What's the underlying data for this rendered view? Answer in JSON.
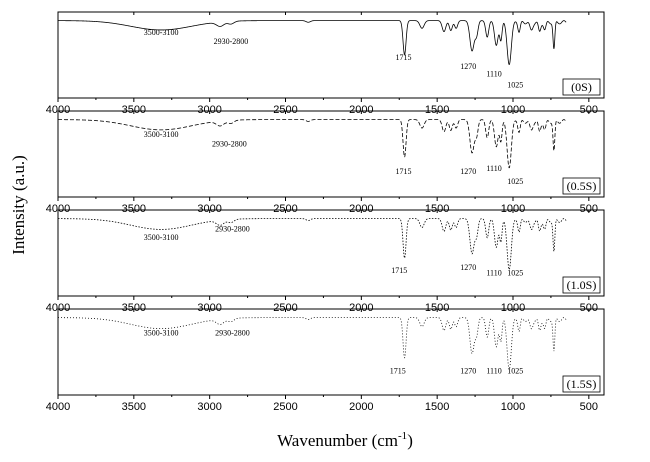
{
  "chart_data": {
    "type": "line",
    "ylabel": "Intensity (a.u.)",
    "xlabel_main": "Wavenumber (cm",
    "xlabel_sup": "-1",
    "xlabel_tail": ")",
    "xlim": [
      4000,
      400
    ],
    "x_ticks": [
      4000,
      3500,
      3000,
      2500,
      2000,
      1500,
      1000,
      500
    ],
    "grid": false,
    "panels": [
      {
        "sample": "(0S)",
        "dash": "",
        "annotations": [
          {
            "text": "3500-3100",
            "x": 3320,
            "y": 0.27
          },
          {
            "text": "2930-2800",
            "x": 2860,
            "y": 0.37
          },
          {
            "text": "1715",
            "x": 1722,
            "y": 0.56
          },
          {
            "text": "1270",
            "x": 1295,
            "y": 0.66
          },
          {
            "text": "1110",
            "x": 1125,
            "y": 0.75
          },
          {
            "text": "1025",
            "x": 985,
            "y": 0.88
          }
        ]
      },
      {
        "sample": "(0.5S)",
        "dash": "4 2",
        "annotations": [
          {
            "text": "3500-3100",
            "x": 3320,
            "y": 0.3
          },
          {
            "text": "2930-2800",
            "x": 2870,
            "y": 0.41
          },
          {
            "text": "1715",
            "x": 1722,
            "y": 0.73
          },
          {
            "text": "1270",
            "x": 1295,
            "y": 0.73
          },
          {
            "text": "1110",
            "x": 1125,
            "y": 0.7
          },
          {
            "text": "1025",
            "x": 985,
            "y": 0.85
          }
        ]
      },
      {
        "sample": "(1.0S)",
        "dash": "1.5 1.5",
        "annotations": [
          {
            "text": "3500-3100",
            "x": 3320,
            "y": 0.35
          },
          {
            "text": "2930-2800",
            "x": 2850,
            "y": 0.25
          },
          {
            "text": "1715",
            "x": 1750,
            "y": 0.73
          },
          {
            "text": "1270",
            "x": 1295,
            "y": 0.7
          },
          {
            "text": "1110",
            "x": 1125,
            "y": 0.76
          },
          {
            "text": "1025",
            "x": 985,
            "y": 0.76
          }
        ]
      },
      {
        "sample": "(1.5S)",
        "dash": "1 2",
        "annotations": [
          {
            "text": "3500-3100",
            "x": 3320,
            "y": 0.31
          },
          {
            "text": "2930-2800",
            "x": 2850,
            "y": 0.31
          },
          {
            "text": "1715",
            "x": 1760,
            "y": 0.75
          },
          {
            "text": "1270",
            "x": 1295,
            "y": 0.75
          },
          {
            "text": "1110",
            "x": 1125,
            "y": 0.75
          },
          {
            "text": "1025",
            "x": 985,
            "y": 0.75
          }
        ]
      }
    ]
  }
}
